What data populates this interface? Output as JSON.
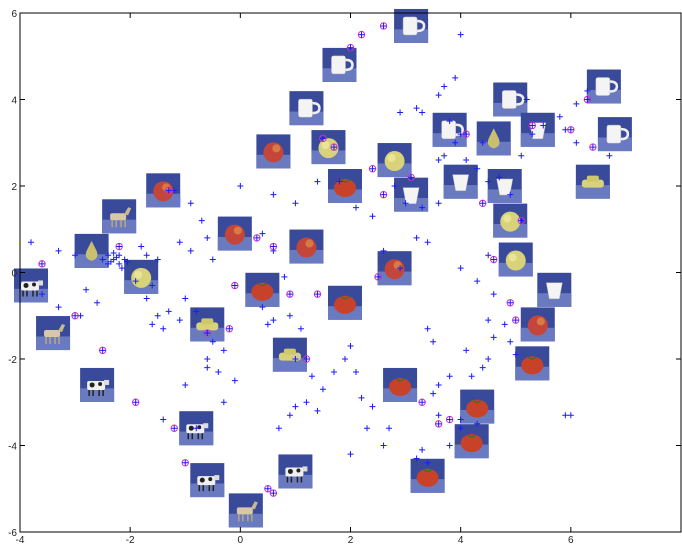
{
  "chart_data": {
    "type": "scatter",
    "title": "",
    "xlabel": "",
    "ylabel": "",
    "xlim": [
      -4,
      8
    ],
    "ylim": [
      -6,
      6
    ],
    "x_ticks": [
      -4,
      -2,
      0,
      2,
      4,
      6
    ],
    "y_ticks": [
      -6,
      -4,
      -2,
      0,
      2,
      4,
      6
    ],
    "x_tick_labels": [
      "-4",
      "-2",
      "0",
      "2",
      "4",
      "6"
    ],
    "y_tick_labels": [
      "-6",
      "-4",
      "-2",
      "0",
      "2",
      "4",
      "6"
    ],
    "grid": false,
    "legend": "none",
    "colors": {
      "plus": "#1a1aff",
      "circle": "#cc33cc",
      "thumb_bg": "#3a4a9a"
    },
    "series": [
      {
        "marker": "plus",
        "points": [
          [
            -3.8,
            0.7
          ],
          [
            -3.3,
            0.5
          ],
          [
            -3.0,
            0.4
          ],
          [
            -3.6,
            -0.5
          ],
          [
            -3.3,
            -0.8
          ],
          [
            -2.6,
            -0.7
          ],
          [
            -2.9,
            -1.0
          ],
          [
            -2.8,
            -0.4
          ],
          [
            -2.5,
            0.3
          ],
          [
            -2.4,
            0.4
          ],
          [
            -2.3,
            0.3
          ],
          [
            -2.2,
            0.2
          ],
          [
            -2.25,
            0.35
          ],
          [
            -2.35,
            0.25
          ],
          [
            -2.15,
            0.1
          ],
          [
            -2.3,
            0.45
          ],
          [
            -2.2,
            0.4
          ],
          [
            -2.1,
            0.3
          ],
          [
            -2.4,
            0.2
          ],
          [
            -2.05,
            0.25
          ],
          [
            -1.8,
            0.6
          ],
          [
            -1.7,
            0.4
          ],
          [
            -1.5,
            0.3
          ],
          [
            -1.9,
            -0.2
          ],
          [
            -1.6,
            -0.3
          ],
          [
            -1.7,
            -0.6
          ],
          [
            -1.5,
            -1.0
          ],
          [
            -1.3,
            -0.9
          ],
          [
            -1.6,
            -1.2
          ],
          [
            -1.4,
            -1.3
          ],
          [
            -1.2,
            1.9
          ],
          [
            -0.9,
            1.6
          ],
          [
            -0.7,
            1.2
          ],
          [
            -0.6,
            0.8
          ],
          [
            -1.1,
            0.7
          ],
          [
            -0.9,
            0.5
          ],
          [
            -0.5,
            0.3
          ],
          [
            -1.0,
            -0.6
          ],
          [
            -1.1,
            -1.1
          ],
          [
            -0.8,
            -0.9
          ],
          [
            -1.0,
            -2.6
          ],
          [
            -0.6,
            -2.2
          ],
          [
            -0.4,
            -2.3
          ],
          [
            -0.6,
            -2.0
          ],
          [
            -0.5,
            -1.6
          ],
          [
            -0.3,
            -1.8
          ],
          [
            -0.8,
            -3.6
          ],
          [
            -1.4,
            -3.4
          ],
          [
            -0.3,
            -3.0
          ],
          [
            -0.1,
            -2.5
          ],
          [
            0.0,
            2.0
          ],
          [
            0.4,
            0.9
          ],
          [
            0.6,
            0.5
          ],
          [
            0.8,
            -0.1
          ],
          [
            0.4,
            -0.8
          ],
          [
            0.5,
            -1.2
          ],
          [
            0.6,
            -1.1
          ],
          [
            0.9,
            -1.0
          ],
          [
            1.1,
            -1.3
          ],
          [
            1.0,
            -2.0
          ],
          [
            0.7,
            -3.6
          ],
          [
            0.9,
            -3.3
          ],
          [
            1.0,
            -3.1
          ],
          [
            1.2,
            -3.0
          ],
          [
            1.4,
            -3.2
          ],
          [
            1.3,
            -2.4
          ],
          [
            1.5,
            -2.7
          ],
          [
            1.7,
            -2.3
          ],
          [
            1.9,
            -2.0
          ],
          [
            2.0,
            -1.7
          ],
          [
            2.1,
            -2.3
          ],
          [
            2.2,
            -2.9
          ],
          [
            2.4,
            -3.1
          ],
          [
            2.3,
            -3.6
          ],
          [
            2.0,
            -4.2
          ],
          [
            2.6,
            -4.0
          ],
          [
            2.7,
            -3.6
          ],
          [
            0.6,
            1.8
          ],
          [
            1.0,
            1.6
          ],
          [
            1.4,
            2.1
          ],
          [
            1.8,
            2.1
          ],
          [
            2.1,
            1.5
          ],
          [
            2.4,
            1.3
          ],
          [
            2.6,
            0.5
          ],
          [
            2.9,
            0.1
          ],
          [
            3.2,
            0.8
          ],
          [
            3.4,
            0.7
          ],
          [
            3.6,
            1.6
          ],
          [
            3.7,
            2.7
          ],
          [
            3.9,
            3.0
          ],
          [
            3.4,
            -1.3
          ],
          [
            3.5,
            -1.6
          ],
          [
            3.6,
            -2.6
          ],
          [
            3.8,
            -2.4
          ],
          [
            3.5,
            -2.8
          ],
          [
            3.6,
            -3.3
          ],
          [
            3.3,
            -4.1
          ],
          [
            3.2,
            -4.3
          ],
          [
            3.4,
            -4.4
          ],
          [
            3.8,
            -4.0
          ],
          [
            4.0,
            -3.4
          ],
          [
            4.1,
            -1.8
          ],
          [
            4.2,
            -2.4
          ],
          [
            4.4,
            -2.2
          ],
          [
            4.5,
            -2.0
          ],
          [
            4.6,
            -1.5
          ],
          [
            4.5,
            -1.1
          ],
          [
            4.8,
            -1.2
          ],
          [
            4.9,
            -1.6
          ],
          [
            5.0,
            -1.9
          ],
          [
            4.6,
            -0.5
          ],
          [
            4.3,
            -0.2
          ],
          [
            4.0,
            0.1
          ],
          [
            4.5,
            0.4
          ],
          [
            3.3,
            3.7
          ],
          [
            3.6,
            4.1
          ],
          [
            3.7,
            4.3
          ],
          [
            3.9,
            4.5
          ],
          [
            3.8,
            3.5
          ],
          [
            4.0,
            3.2
          ],
          [
            4.1,
            2.6
          ],
          [
            4.3,
            2.4
          ],
          [
            4.4,
            3.0
          ],
          [
            4.5,
            2.1
          ],
          [
            4.7,
            2.2
          ],
          [
            4.9,
            1.8
          ],
          [
            5.1,
            2.7
          ],
          [
            5.3,
            3.2
          ],
          [
            5.5,
            3.4
          ],
          [
            4.0,
            5.5
          ],
          [
            5.2,
            4.0
          ],
          [
            5.8,
            3.6
          ],
          [
            6.1,
            3.9
          ],
          [
            6.3,
            4.2
          ],
          [
            5.9,
            3.3
          ],
          [
            6.1,
            3.0
          ],
          [
            6.7,
            2.7
          ],
          [
            5.9,
            -3.3
          ],
          [
            6.0,
            -3.3
          ],
          [
            2.8,
            2.0
          ],
          [
            3.0,
            1.6
          ],
          [
            3.3,
            1.5
          ],
          [
            2.9,
            3.7
          ],
          [
            3.2,
            3.8
          ],
          [
            3.6,
            2.6
          ],
          [
            4.3,
            -3.5
          ],
          [
            4.0,
            -3.6
          ]
        ]
      },
      {
        "marker": "circle-plus",
        "points": [
          [
            -3.6,
            0.2
          ],
          [
            -3.0,
            -1.0
          ],
          [
            -2.5,
            -1.8
          ],
          [
            -2.2,
            0.6
          ],
          [
            -1.9,
            -3.0
          ],
          [
            -1.3,
            1.9
          ],
          [
            -1.2,
            -3.6
          ],
          [
            -1.0,
            -4.4
          ],
          [
            -0.6,
            -1.4
          ],
          [
            -0.2,
            -1.3
          ],
          [
            -0.1,
            -0.3
          ],
          [
            0.3,
            0.8
          ],
          [
            0.6,
            0.6
          ],
          [
            0.9,
            -0.5
          ],
          [
            1.2,
            -2.0
          ],
          [
            1.4,
            -0.5
          ],
          [
            1.5,
            3.1
          ],
          [
            1.7,
            2.9
          ],
          [
            2.0,
            5.2
          ],
          [
            2.2,
            5.5
          ],
          [
            2.5,
            -0.1
          ],
          [
            2.6,
            1.8
          ],
          [
            2.4,
            2.4
          ],
          [
            2.6,
            5.7
          ],
          [
            3.1,
            2.2
          ],
          [
            3.3,
            -3.0
          ],
          [
            3.6,
            -3.5
          ],
          [
            3.8,
            -3.4
          ],
          [
            4.1,
            3.2
          ],
          [
            4.4,
            1.6
          ],
          [
            4.6,
            0.3
          ],
          [
            4.9,
            -0.7
          ],
          [
            5.0,
            -1.1
          ],
          [
            5.1,
            1.2
          ],
          [
            5.3,
            3.4
          ],
          [
            6.0,
            3.3
          ],
          [
            6.3,
            4.0
          ],
          [
            6.4,
            2.9
          ],
          [
            0.5,
            -5.0
          ],
          [
            0.6,
            -5.1
          ]
        ]
      }
    ],
    "thumbnails": [
      {
        "x": 3.1,
        "y": 5.7,
        "kind": "mug"
      },
      {
        "x": 1.8,
        "y": 4.8,
        "kind": "mug"
      },
      {
        "x": 1.2,
        "y": 3.8,
        "kind": "mug"
      },
      {
        "x": 4.9,
        "y": 4.0,
        "kind": "mug"
      },
      {
        "x": 6.6,
        "y": 4.3,
        "kind": "mug"
      },
      {
        "x": 3.8,
        "y": 3.3,
        "kind": "mug"
      },
      {
        "x": 6.8,
        "y": 3.2,
        "kind": "mug"
      },
      {
        "x": 5.4,
        "y": 3.3,
        "kind": "cup"
      },
      {
        "x": 4.6,
        "y": 3.1,
        "kind": "pear"
      },
      {
        "x": 1.6,
        "y": 2.9,
        "kind": "apple-yellow"
      },
      {
        "x": 0.6,
        "y": 2.8,
        "kind": "apple"
      },
      {
        "x": 2.8,
        "y": 2.6,
        "kind": "apple-yellow"
      },
      {
        "x": 4.0,
        "y": 2.1,
        "kind": "cup"
      },
      {
        "x": 4.8,
        "y": 2.0,
        "kind": "cup"
      },
      {
        "x": 3.1,
        "y": 1.8,
        "kind": "cup"
      },
      {
        "x": 1.9,
        "y": 2.0,
        "kind": "tomato"
      },
      {
        "x": 6.4,
        "y": 2.1,
        "kind": "car"
      },
      {
        "x": -1.4,
        "y": 1.9,
        "kind": "apple"
      },
      {
        "x": -2.2,
        "y": 1.3,
        "kind": "horse"
      },
      {
        "x": 4.9,
        "y": 1.2,
        "kind": "apple-yellow"
      },
      {
        "x": -0.1,
        "y": 0.9,
        "kind": "apple"
      },
      {
        "x": 1.2,
        "y": 0.6,
        "kind": "apple"
      },
      {
        "x": -2.7,
        "y": 0.5,
        "kind": "pear"
      },
      {
        "x": 2.8,
        "y": 0.1,
        "kind": "apple"
      },
      {
        "x": 5.0,
        "y": 0.3,
        "kind": "apple-yellow"
      },
      {
        "x": -1.8,
        "y": -0.1,
        "kind": "apple-yellow"
      },
      {
        "x": -3.8,
        "y": -0.3,
        "kind": "cow"
      },
      {
        "x": 0.4,
        "y": -0.4,
        "kind": "tomato"
      },
      {
        "x": 5.7,
        "y": -0.4,
        "kind": "cup"
      },
      {
        "x": 1.9,
        "y": -0.7,
        "kind": "tomato"
      },
      {
        "x": -0.6,
        "y": -1.2,
        "kind": "car"
      },
      {
        "x": 5.4,
        "y": -1.2,
        "kind": "apple"
      },
      {
        "x": -3.4,
        "y": -1.4,
        "kind": "horse"
      },
      {
        "x": 0.9,
        "y": -1.9,
        "kind": "car"
      },
      {
        "x": 5.3,
        "y": -2.1,
        "kind": "tomato"
      },
      {
        "x": -2.6,
        "y": -2.6,
        "kind": "cow"
      },
      {
        "x": 2.9,
        "y": -2.6,
        "kind": "tomato"
      },
      {
        "x": 4.3,
        "y": -3.1,
        "kind": "tomato"
      },
      {
        "x": -0.8,
        "y": -3.6,
        "kind": "cow"
      },
      {
        "x": 4.2,
        "y": -3.9,
        "kind": "tomato"
      },
      {
        "x": -0.6,
        "y": -4.8,
        "kind": "cow"
      },
      {
        "x": 1.0,
        "y": -4.6,
        "kind": "cow"
      },
      {
        "x": 3.4,
        "y": -4.7,
        "kind": "tomato"
      },
      {
        "x": 0.1,
        "y": -5.5,
        "kind": "horse"
      }
    ]
  }
}
